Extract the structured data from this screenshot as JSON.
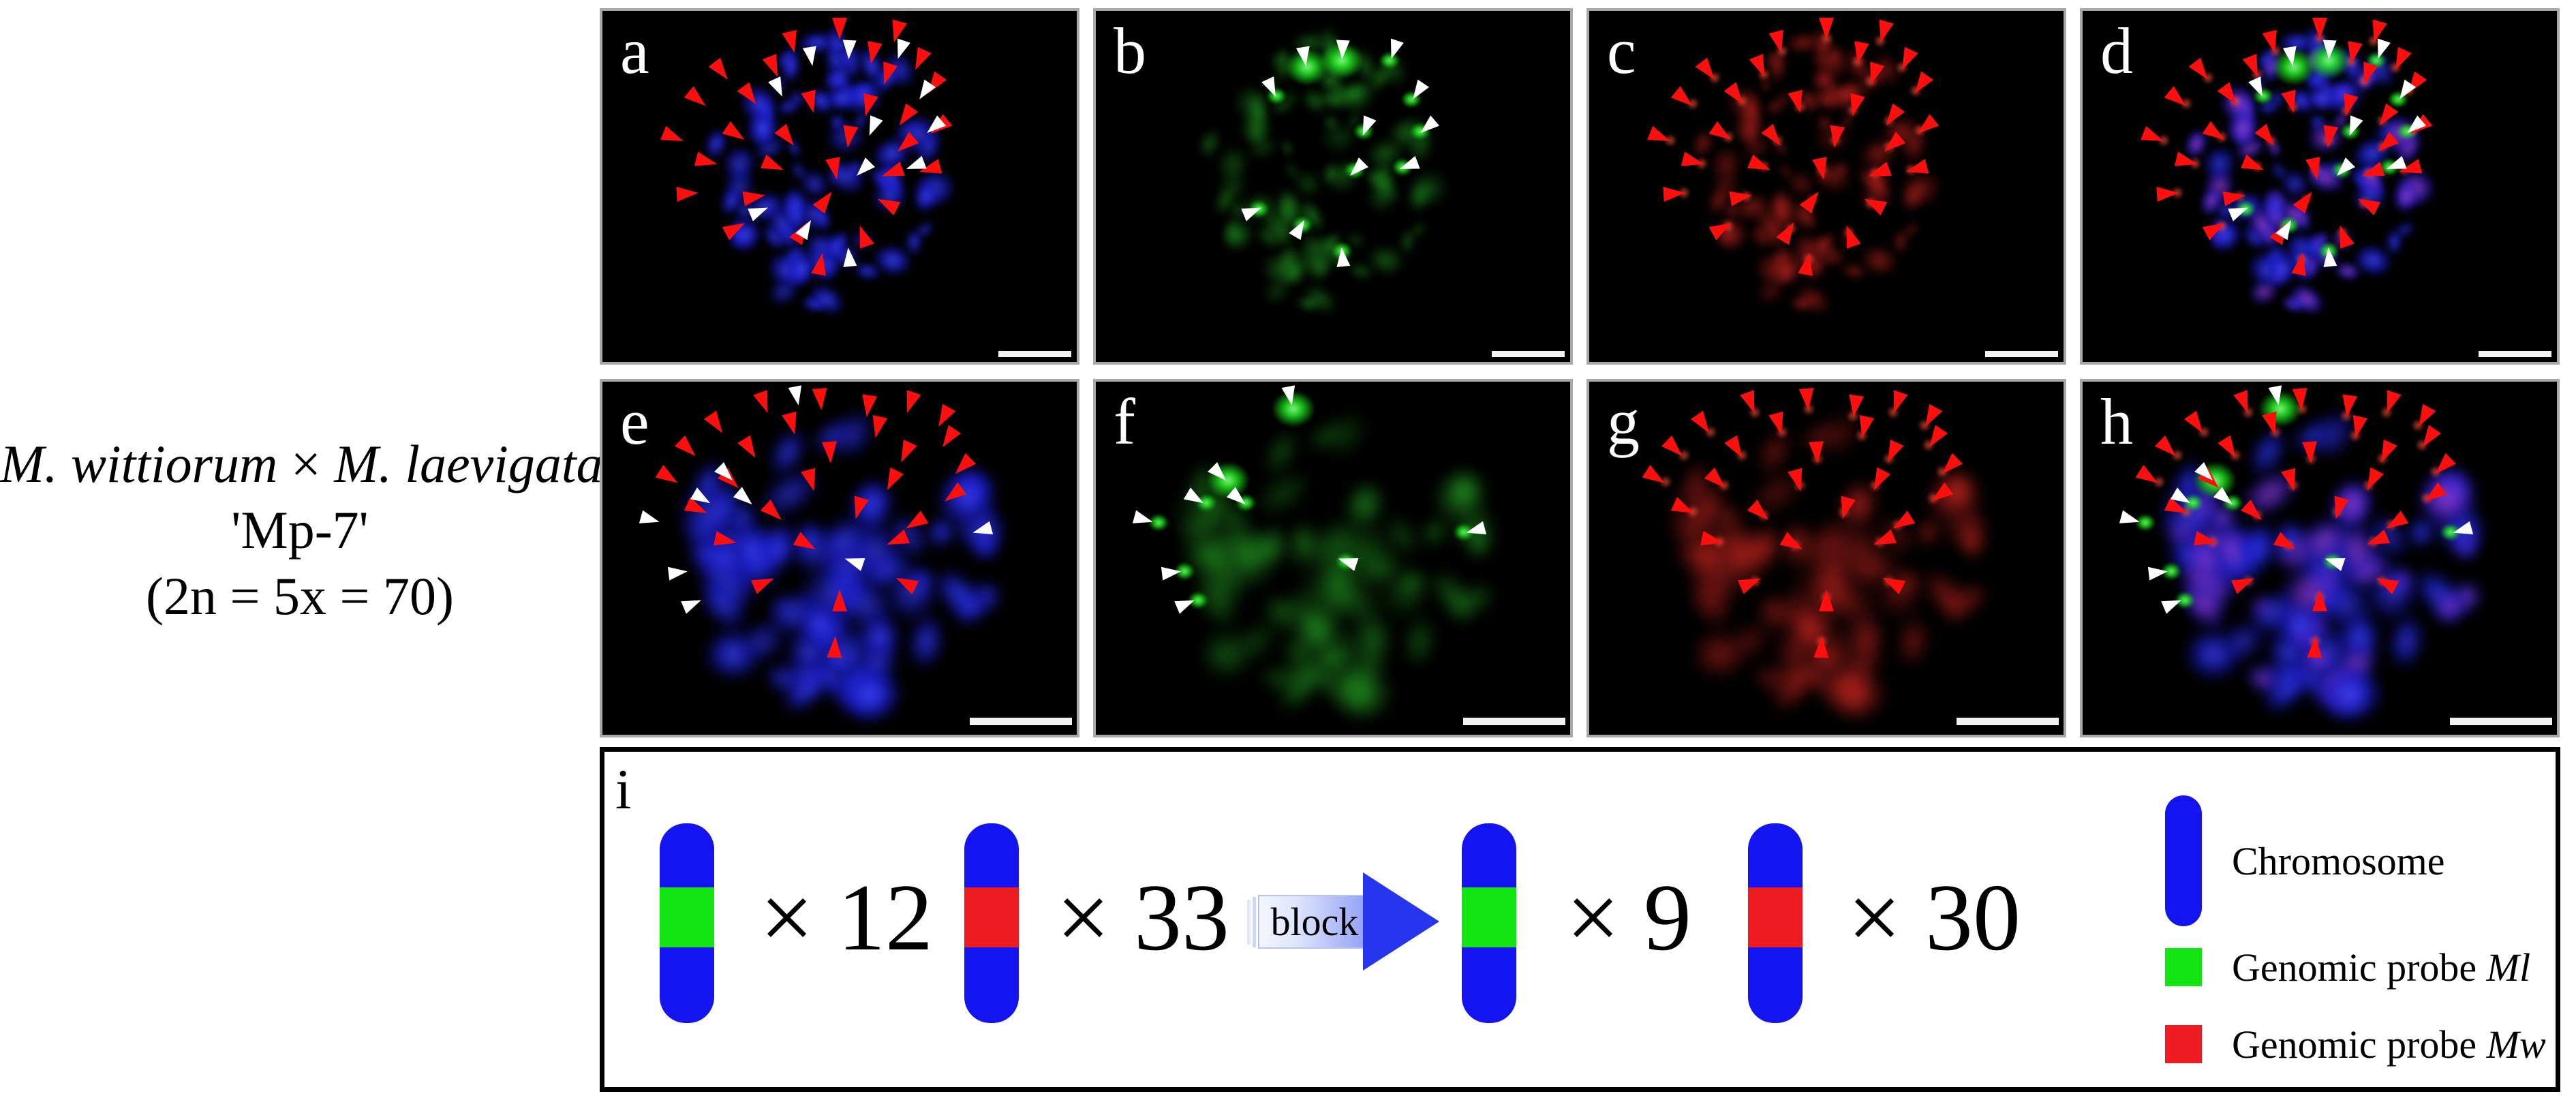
{
  "specimen": {
    "parent1": "M. wittiorum",
    "cross_symbol": " × ",
    "parent2": "M. laevigata",
    "accession": "'Mp-7'",
    "ploidy": "(2n = 5x = 70)"
  },
  "panels": [
    {
      "label": "a",
      "channel": "dapi",
      "cell": "c1",
      "arrows": [
        "red",
        "white"
      ]
    },
    {
      "label": "b",
      "channel": "green",
      "cell": "c1",
      "arrows": [
        "white"
      ]
    },
    {
      "label": "c",
      "channel": "red",
      "cell": "c1",
      "arrows": [
        "red"
      ]
    },
    {
      "label": "d",
      "channel": "merge",
      "cell": "c1",
      "arrows": [
        "red",
        "white"
      ]
    },
    {
      "label": "e",
      "channel": "dapi",
      "cell": "c2",
      "arrows": [
        "red",
        "white"
      ]
    },
    {
      "label": "f",
      "channel": "green",
      "cell": "c2",
      "arrows": [
        "white"
      ]
    },
    {
      "label": "g",
      "channel": "red",
      "cell": "c2",
      "arrows": [
        "red"
      ]
    },
    {
      "label": "h",
      "channel": "merge",
      "cell": "c2",
      "arrows": [
        "red",
        "white"
      ]
    }
  ],
  "cells": {
    "c1": {
      "red": [
        [
          50,
          5
        ],
        [
          62,
          6
        ],
        [
          40,
          9
        ],
        [
          57,
          12
        ],
        [
          67,
          14
        ],
        [
          25,
          17
        ],
        [
          36,
          16
        ],
        [
          60,
          18
        ],
        [
          70,
          21
        ],
        [
          20,
          25
        ],
        [
          31,
          24
        ],
        [
          44,
          26
        ],
        [
          56,
          27
        ],
        [
          64,
          30
        ],
        [
          71,
          33
        ],
        [
          15,
          36
        ],
        [
          28,
          35
        ],
        [
          39,
          36
        ],
        [
          52,
          36
        ],
        [
          64,
          38
        ],
        [
          22,
          43
        ],
        [
          36,
          44
        ],
        [
          49,
          45
        ],
        [
          61,
          46
        ],
        [
          69,
          45
        ],
        [
          18,
          52
        ],
        [
          32,
          53
        ],
        [
          47,
          54
        ],
        [
          60,
          55
        ],
        [
          28,
          62
        ],
        [
          42,
          63
        ],
        [
          55,
          64
        ],
        [
          46,
          72
        ]
      ],
      "white": [
        [
          44,
          13
        ],
        [
          52,
          11
        ],
        [
          63,
          11
        ],
        [
          37,
          22
        ],
        [
          68,
          23
        ],
        [
          57,
          33
        ],
        [
          70,
          33
        ],
        [
          55,
          45
        ],
        [
          66,
          44
        ],
        [
          33,
          57
        ],
        [
          43,
          62
        ],
        [
          52,
          70
        ]
      ]
    },
    "c2": {
      "red": [
        [
          34,
          6
        ],
        [
          46,
          5
        ],
        [
          56,
          7
        ],
        [
          65,
          6
        ],
        [
          72,
          10
        ],
        [
          24,
          12
        ],
        [
          40,
          12
        ],
        [
          58,
          13
        ],
        [
          73,
          16
        ],
        [
          18,
          19
        ],
        [
          31,
          19
        ],
        [
          48,
          20
        ],
        [
          64,
          20
        ],
        [
          76,
          24
        ],
        [
          14,
          27
        ],
        [
          27,
          28
        ],
        [
          44,
          28
        ],
        [
          61,
          28
        ],
        [
          74,
          32
        ],
        [
          20,
          36
        ],
        [
          36,
          37
        ],
        [
          54,
          36
        ],
        [
          66,
          40
        ],
        [
          26,
          45
        ],
        [
          43,
          46
        ],
        [
          62,
          45
        ],
        [
          34,
          57
        ],
        [
          50,
          62
        ],
        [
          64,
          57
        ],
        [
          49,
          75
        ]
      ],
      "white": [
        [
          41,
          4
        ],
        [
          26,
          26
        ],
        [
          21,
          33
        ],
        [
          30,
          33
        ],
        [
          10,
          39
        ],
        [
          80,
          42
        ],
        [
          53,
          51
        ],
        [
          16,
          54
        ],
        [
          19,
          63
        ]
      ]
    }
  },
  "schematic": {
    "label": "i",
    "count_labels": [
      "× 12",
      "× 33",
      "× 9",
      "× 30"
    ],
    "arrow_label": "block",
    "legend": [
      {
        "label": "Chromosome",
        "italic": ""
      },
      {
        "label": "Genomic probe ",
        "italic": "Ml"
      },
      {
        "label": "Genomic probe ",
        "italic": "Mw"
      }
    ]
  },
  "colors": {
    "chromosome_blue": "#1414f0",
    "probe_green": "#12e512",
    "probe_red": "#ee1b22",
    "block_arrow_blue": "#2636ee",
    "signal_arrow_red": "#ff0e0e",
    "signal_arrow_white": "#ffffff"
  }
}
